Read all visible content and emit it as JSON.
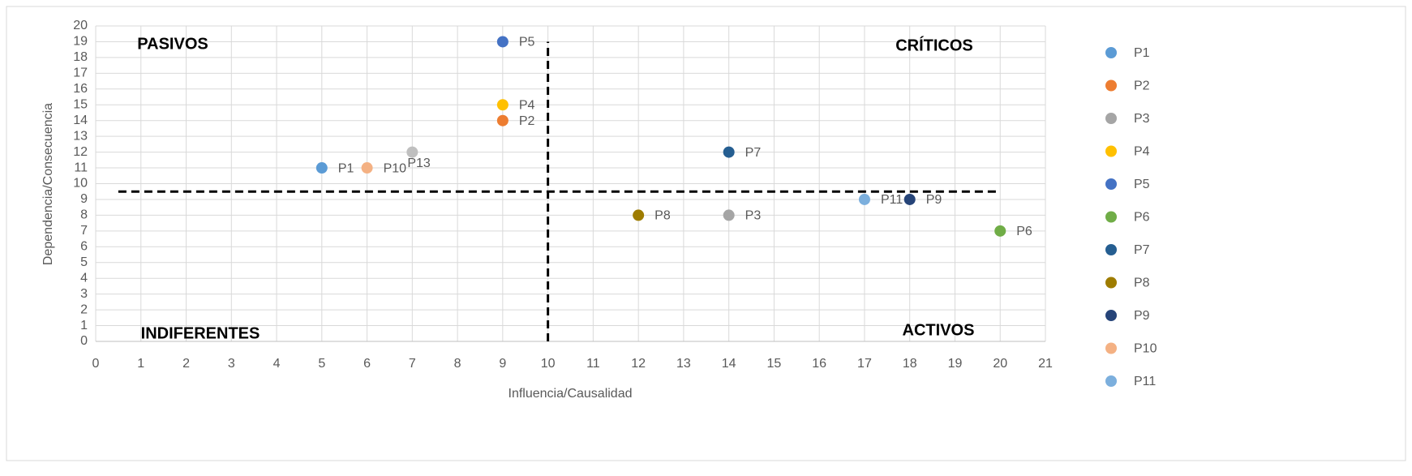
{
  "chart_data": {
    "type": "scatter",
    "xlabel": "Influencia/Causalidad",
    "ylabel": "Dependencia/Consecuencia",
    "annotations": [
      "PASIVOS",
      "CRÍTICOS",
      "INDIFERENTES",
      "ACTIVOS"
    ],
    "reference_lines": [
      {
        "axis": "x",
        "value": 10
      },
      {
        "axis": "y",
        "value": 9.5
      }
    ],
    "xlim": [
      0,
      21
    ],
    "xticks": [
      0,
      1,
      2,
      3,
      4,
      5,
      6,
      7,
      8,
      9,
      10,
      11,
      12,
      13,
      14,
      15,
      16,
      17,
      18,
      19,
      20,
      21
    ],
    "ylim": [
      0,
      20
    ],
    "yticks": [
      0,
      1,
      2,
      3,
      4,
      5,
      6,
      7,
      8,
      9,
      10,
      11,
      12,
      13,
      14,
      15,
      16,
      17,
      18,
      19,
      20
    ],
    "grid": true,
    "legend": "right",
    "series": [
      {
        "name": "P1",
        "color": "#5b9bd5",
        "x": [
          5
        ],
        "values": [
          11
        ]
      },
      {
        "name": "P2",
        "color": "#ed7d31",
        "x": [
          9
        ],
        "values": [
          14
        ]
      },
      {
        "name": "P3",
        "color": "#a5a5a5",
        "x": [
          14
        ],
        "values": [
          8
        ]
      },
      {
        "name": "P4",
        "color": "#ffc000",
        "x": [
          9
        ],
        "values": [
          15
        ]
      },
      {
        "name": "P5",
        "color": "#4472c4",
        "x": [
          9
        ],
        "values": [
          19
        ]
      },
      {
        "name": "P6",
        "color": "#70ad47",
        "x": [
          20
        ],
        "values": [
          7
        ]
      },
      {
        "name": "P7",
        "color": "#255e91",
        "x": [
          14
        ],
        "values": [
          12
        ]
      },
      {
        "name": "P8",
        "color": "#9e7c00",
        "x": [
          12
        ],
        "values": [
          8
        ]
      },
      {
        "name": "P9",
        "color": "#264478",
        "x": [
          18
        ],
        "values": [
          9
        ]
      },
      {
        "name": "P10",
        "color": "#f4b183",
        "x": [
          6
        ],
        "values": [
          11
        ]
      },
      {
        "name": "P11",
        "color": "#7cafdd",
        "x": [
          17
        ],
        "values": [
          9
        ]
      },
      {
        "name": "P13",
        "color": "#bfbfbf",
        "x": [
          7
        ],
        "values": [
          12
        ]
      }
    ]
  }
}
